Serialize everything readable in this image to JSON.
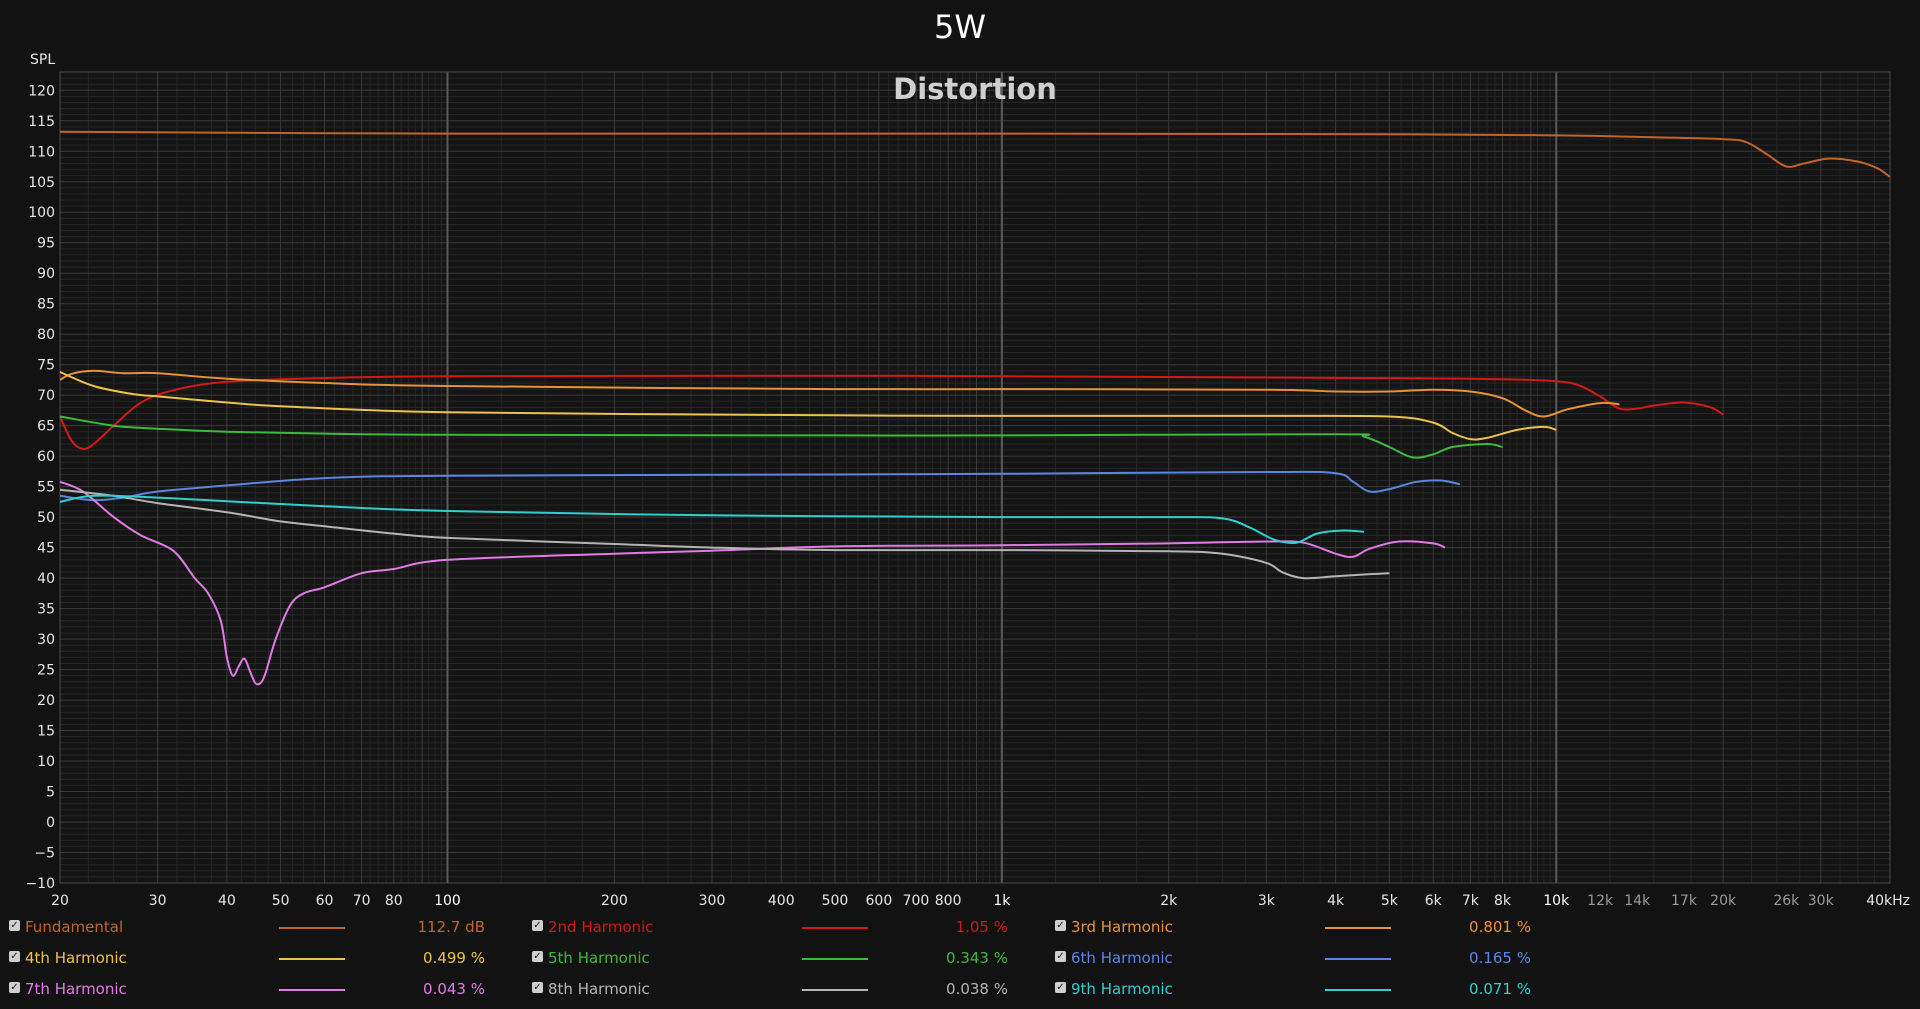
{
  "title": "5W",
  "colors": {
    "background": "#121212",
    "grid": "#3a3a3a",
    "grid_minor": "#262626",
    "grid_decade": "#5a5a5a",
    "axis_text": "#e6e6e6"
  },
  "chart_data": {
    "type": "line",
    "title": "Distortion",
    "ylabel": "SPL",
    "xlabel": "",
    "x_scale": "log",
    "xlim": [
      20,
      40000
    ],
    "ylim": [
      -10,
      123
    ],
    "grid": true,
    "y_ticks": [
      -10,
      -5,
      0,
      5,
      10,
      15,
      20,
      25,
      30,
      35,
      40,
      45,
      50,
      55,
      60,
      65,
      70,
      75,
      80,
      85,
      90,
      95,
      100,
      105,
      110,
      115,
      120
    ],
    "x_ticks": [
      {
        "value": 20,
        "label": "20"
      },
      {
        "value": 30,
        "label": "30"
      },
      {
        "value": 40,
        "label": "40"
      },
      {
        "value": 50,
        "label": "50"
      },
      {
        "value": 60,
        "label": "60"
      },
      {
        "value": 70,
        "label": "70"
      },
      {
        "value": 80,
        "label": "80"
      },
      {
        "value": 100,
        "label": "100"
      },
      {
        "value": 200,
        "label": "200"
      },
      {
        "value": 300,
        "label": "300"
      },
      {
        "value": 400,
        "label": "400"
      },
      {
        "value": 500,
        "label": "500"
      },
      {
        "value": 600,
        "label": "600"
      },
      {
        "value": 700,
        "label": "700"
      },
      {
        "value": 800,
        "label": "800"
      },
      {
        "value": 1000,
        "label": "1k"
      },
      {
        "value": 2000,
        "label": "2k"
      },
      {
        "value": 3000,
        "label": "3k"
      },
      {
        "value": 4000,
        "label": "4k"
      },
      {
        "value": 5000,
        "label": "5k"
      },
      {
        "value": 6000,
        "label": "6k"
      },
      {
        "value": 7000,
        "label": "7k"
      },
      {
        "value": 8000,
        "label": "8k"
      },
      {
        "value": 10000,
        "label": "10k"
      },
      {
        "value": 12000,
        "label": "12k"
      },
      {
        "value": 14000,
        "label": "14k"
      },
      {
        "value": 17000,
        "label": "17k"
      },
      {
        "value": 20000,
        "label": "20k"
      },
      {
        "value": 26000,
        "label": "26k"
      },
      {
        "value": 30000,
        "label": "30k"
      },
      {
        "value": 40000,
        "label": "40kHz"
      }
    ],
    "series": [
      {
        "name": "Fundamental",
        "color": "#c0642c",
        "value": "112.7 dB",
        "checked": true,
        "points": [
          [
            20,
            113.2
          ],
          [
            50,
            113.0
          ],
          [
            100,
            112.9
          ],
          [
            1000,
            112.9
          ],
          [
            5000,
            112.8
          ],
          [
            10000,
            112.6
          ],
          [
            15000,
            112.3
          ],
          [
            20000,
            112.0
          ],
          [
            22000,
            111.5
          ],
          [
            24000,
            109.5
          ],
          [
            26000,
            107.5
          ],
          [
            28000,
            108.0
          ],
          [
            31000,
            108.8
          ],
          [
            35000,
            108.3
          ],
          [
            38000,
            107.2
          ],
          [
            40000,
            105.8
          ]
        ]
      },
      {
        "name": "2nd Harmonic",
        "color": "#d41818",
        "value": "1.05 %",
        "checked": true,
        "points": [
          [
            20,
            66.5
          ],
          [
            21,
            62.5
          ],
          [
            22,
            61.2
          ],
          [
            23,
            62.0
          ],
          [
            25,
            65.0
          ],
          [
            28,
            68.8
          ],
          [
            32,
            70.8
          ],
          [
            40,
            72.2
          ],
          [
            60,
            72.8
          ],
          [
            100,
            73.1
          ],
          [
            500,
            73.2
          ],
          [
            1000,
            73.1
          ],
          [
            5000,
            72.8
          ],
          [
            8000,
            72.6
          ],
          [
            10000,
            72.3
          ],
          [
            11000,
            71.6
          ],
          [
            12000,
            69.8
          ],
          [
            13000,
            67.8
          ],
          [
            14000,
            67.8
          ],
          [
            15000,
            68.3
          ],
          [
            17000,
            68.8
          ],
          [
            19000,
            68.0
          ],
          [
            20000,
            66.8
          ]
        ]
      },
      {
        "name": "3rd Harmonic",
        "color": "#e89238",
        "value": "0.801 %",
        "checked": true,
        "points": [
          [
            20,
            72.5
          ],
          [
            21,
            73.5
          ],
          [
            23,
            74.0
          ],
          [
            26,
            73.6
          ],
          [
            30,
            73.6
          ],
          [
            40,
            72.7
          ],
          [
            60,
            72.0
          ],
          [
            100,
            71.5
          ],
          [
            500,
            71.0
          ],
          [
            1000,
            71.0
          ],
          [
            3000,
            70.9
          ],
          [
            4000,
            70.6
          ],
          [
            5000,
            70.6
          ],
          [
            6000,
            70.9
          ],
          [
            7000,
            70.6
          ],
          [
            8000,
            69.5
          ],
          [
            8800,
            67.5
          ],
          [
            9500,
            66.5
          ],
          [
            10500,
            67.7
          ],
          [
            12000,
            68.7
          ],
          [
            13000,
            68.5
          ]
        ]
      },
      {
        "name": "4th Harmonic",
        "color": "#ecc24a",
        "value": "0.499 %",
        "checked": true,
        "points": [
          [
            20,
            73.8
          ],
          [
            23,
            71.5
          ],
          [
            27,
            70.2
          ],
          [
            30,
            69.8
          ],
          [
            40,
            68.8
          ],
          [
            50,
            68.2
          ],
          [
            100,
            67.2
          ],
          [
            500,
            66.7
          ],
          [
            1000,
            66.6
          ],
          [
            3000,
            66.6
          ],
          [
            5000,
            66.5
          ],
          [
            6000,
            65.5
          ],
          [
            6500,
            63.8
          ],
          [
            7000,
            62.8
          ],
          [
            7500,
            63.0
          ],
          [
            8500,
            64.3
          ],
          [
            9500,
            64.8
          ],
          [
            10000,
            64.3
          ]
        ]
      },
      {
        "name": "5th Harmonic",
        "color": "#3cba3c",
        "value": "0.343 %",
        "checked": true,
        "points": [
          [
            20,
            66.5
          ],
          [
            25,
            65.0
          ],
          [
            30,
            64.5
          ],
          [
            40,
            64.0
          ],
          [
            60,
            63.7
          ],
          [
            100,
            63.5
          ],
          [
            500,
            63.4
          ],
          [
            1000,
            63.4
          ],
          [
            4000,
            63.6
          ],
          [
            4500,
            63.2
          ],
          [
            5000,
            61.5
          ],
          [
            5500,
            59.8
          ],
          [
            6000,
            60.3
          ],
          [
            6500,
            61.5
          ],
          [
            7500,
            62.0
          ],
          [
            8000,
            61.5
          ]
        ]
      },
      {
        "name": "6th Harmonic",
        "color": "#5a86e2",
        "value": "0.165 %",
        "checked": true,
        "points": [
          [
            20,
            53.5
          ],
          [
            23,
            52.8
          ],
          [
            26,
            53.2
          ],
          [
            30,
            54.2
          ],
          [
            40,
            55.2
          ],
          [
            60,
            56.4
          ],
          [
            100,
            56.8
          ],
          [
            500,
            57.0
          ],
          [
            1000,
            57.1
          ],
          [
            3000,
            57.4
          ],
          [
            4000,
            57.2
          ],
          [
            4300,
            55.8
          ],
          [
            4600,
            54.2
          ],
          [
            5000,
            54.6
          ],
          [
            5600,
            55.8
          ],
          [
            6200,
            56.0
          ],
          [
            6700,
            55.4
          ]
        ]
      },
      {
        "name": "7th Harmonic",
        "color": "#e27ae6",
        "value": "0.043 %",
        "checked": true,
        "points": [
          [
            20,
            55.8
          ],
          [
            22,
            54.2
          ],
          [
            25,
            50.0
          ],
          [
            28,
            47.0
          ],
          [
            32,
            44.5
          ],
          [
            35,
            40.0
          ],
          [
            37,
            37.5
          ],
          [
            39,
            33.0
          ],
          [
            40,
            27.0
          ],
          [
            41,
            24.0
          ],
          [
            42,
            25.5
          ],
          [
            43,
            26.8
          ],
          [
            44,
            24.8
          ],
          [
            45,
            22.8
          ],
          [
            46,
            22.8
          ],
          [
            47,
            24.5
          ],
          [
            49,
            30.0
          ],
          [
            52,
            35.5
          ],
          [
            55,
            37.5
          ],
          [
            60,
            38.5
          ],
          [
            70,
            40.8
          ],
          [
            80,
            41.5
          ],
          [
            100,
            43.0
          ],
          [
            200,
            44.0
          ],
          [
            300,
            44.5
          ],
          [
            500,
            45.2
          ],
          [
            1000,
            45.4
          ],
          [
            2000,
            45.7
          ],
          [
            3000,
            46.0
          ],
          [
            3500,
            45.8
          ],
          [
            4000,
            44.0
          ],
          [
            4300,
            43.5
          ],
          [
            4600,
            44.8
          ],
          [
            5200,
            46.0
          ],
          [
            6000,
            45.7
          ],
          [
            6300,
            45.0
          ]
        ]
      },
      {
        "name": "8th Harmonic",
        "color": "#b4b4b4",
        "value": "0.038 %",
        "checked": true,
        "points": [
          [
            20,
            54.5
          ],
          [
            25,
            53.5
          ],
          [
            30,
            52.3
          ],
          [
            40,
            50.8
          ],
          [
            50,
            49.3
          ],
          [
            60,
            48.5
          ],
          [
            80,
            47.3
          ],
          [
            100,
            46.6
          ],
          [
            200,
            45.6
          ],
          [
            300,
            45.0
          ],
          [
            500,
            44.6
          ],
          [
            1000,
            44.6
          ],
          [
            2000,
            44.4
          ],
          [
            2500,
            44.0
          ],
          [
            3000,
            42.5
          ],
          [
            3200,
            41.0
          ],
          [
            3500,
            40.0
          ],
          [
            4000,
            40.3
          ],
          [
            4500,
            40.6
          ],
          [
            5000,
            40.8
          ]
        ]
      },
      {
        "name": "9th Harmonic",
        "color": "#2ecfcf",
        "value": "0.071 %",
        "checked": true,
        "points": [
          [
            20,
            52.5
          ],
          [
            23,
            53.5
          ],
          [
            30,
            53.2
          ],
          [
            40,
            52.6
          ],
          [
            60,
            51.8
          ],
          [
            100,
            51.0
          ],
          [
            300,
            50.3
          ],
          [
            1000,
            50.0
          ],
          [
            2000,
            50.0
          ],
          [
            2500,
            49.8
          ],
          [
            2800,
            48.3
          ],
          [
            3100,
            46.3
          ],
          [
            3400,
            45.8
          ],
          [
            3700,
            47.3
          ],
          [
            4100,
            47.8
          ],
          [
            4500,
            47.6
          ]
        ]
      }
    ]
  }
}
